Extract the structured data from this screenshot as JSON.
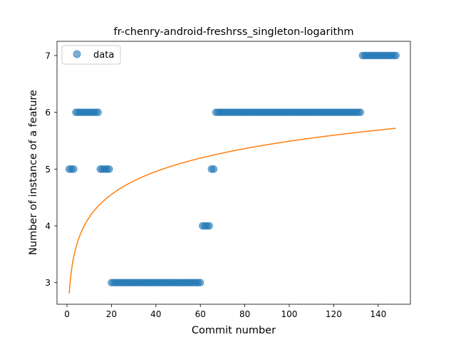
{
  "chart_data": {
    "type": "scatter",
    "title": "fr-chenry-android-freshrss_singleton-logarithm",
    "xlabel": "Commit number",
    "ylabel": "Number of instance of a feature",
    "xlim": [
      -4.5,
      154.5
    ],
    "ylim": [
      2.62,
      7.25
    ],
    "xticks": [
      0,
      20,
      40,
      60,
      80,
      100,
      120,
      140
    ],
    "yticks": [
      3,
      4,
      5,
      6,
      7
    ],
    "legend": {
      "position": "top-left",
      "entries": [
        "data"
      ]
    },
    "grid": false,
    "colors": {
      "points": "#1f77b4",
      "fit": "#ff7f0e"
    },
    "series": [
      {
        "name": "data",
        "kind": "scatter",
        "runs": [
          {
            "x_start": 1,
            "x_end": 3,
            "y": 5
          },
          {
            "x_start": 4,
            "x_end": 14,
            "y": 6
          },
          {
            "x_start": 15,
            "x_end": 19,
            "y": 5
          },
          {
            "x_start": 20,
            "x_end": 60,
            "y": 3
          },
          {
            "x_start": 61,
            "x_end": 64,
            "y": 4
          },
          {
            "x_start": 65,
            "x_end": 66,
            "y": 5
          },
          {
            "x_start": 67,
            "x_end": 132,
            "y": 6
          },
          {
            "x_start": 133,
            "x_end": 148,
            "y": 7
          }
        ]
      },
      {
        "kind": "line",
        "model": "a + b*ln(x)",
        "a": 2.81,
        "b": 0.582,
        "x_range": [
          1,
          148
        ]
      }
    ]
  }
}
